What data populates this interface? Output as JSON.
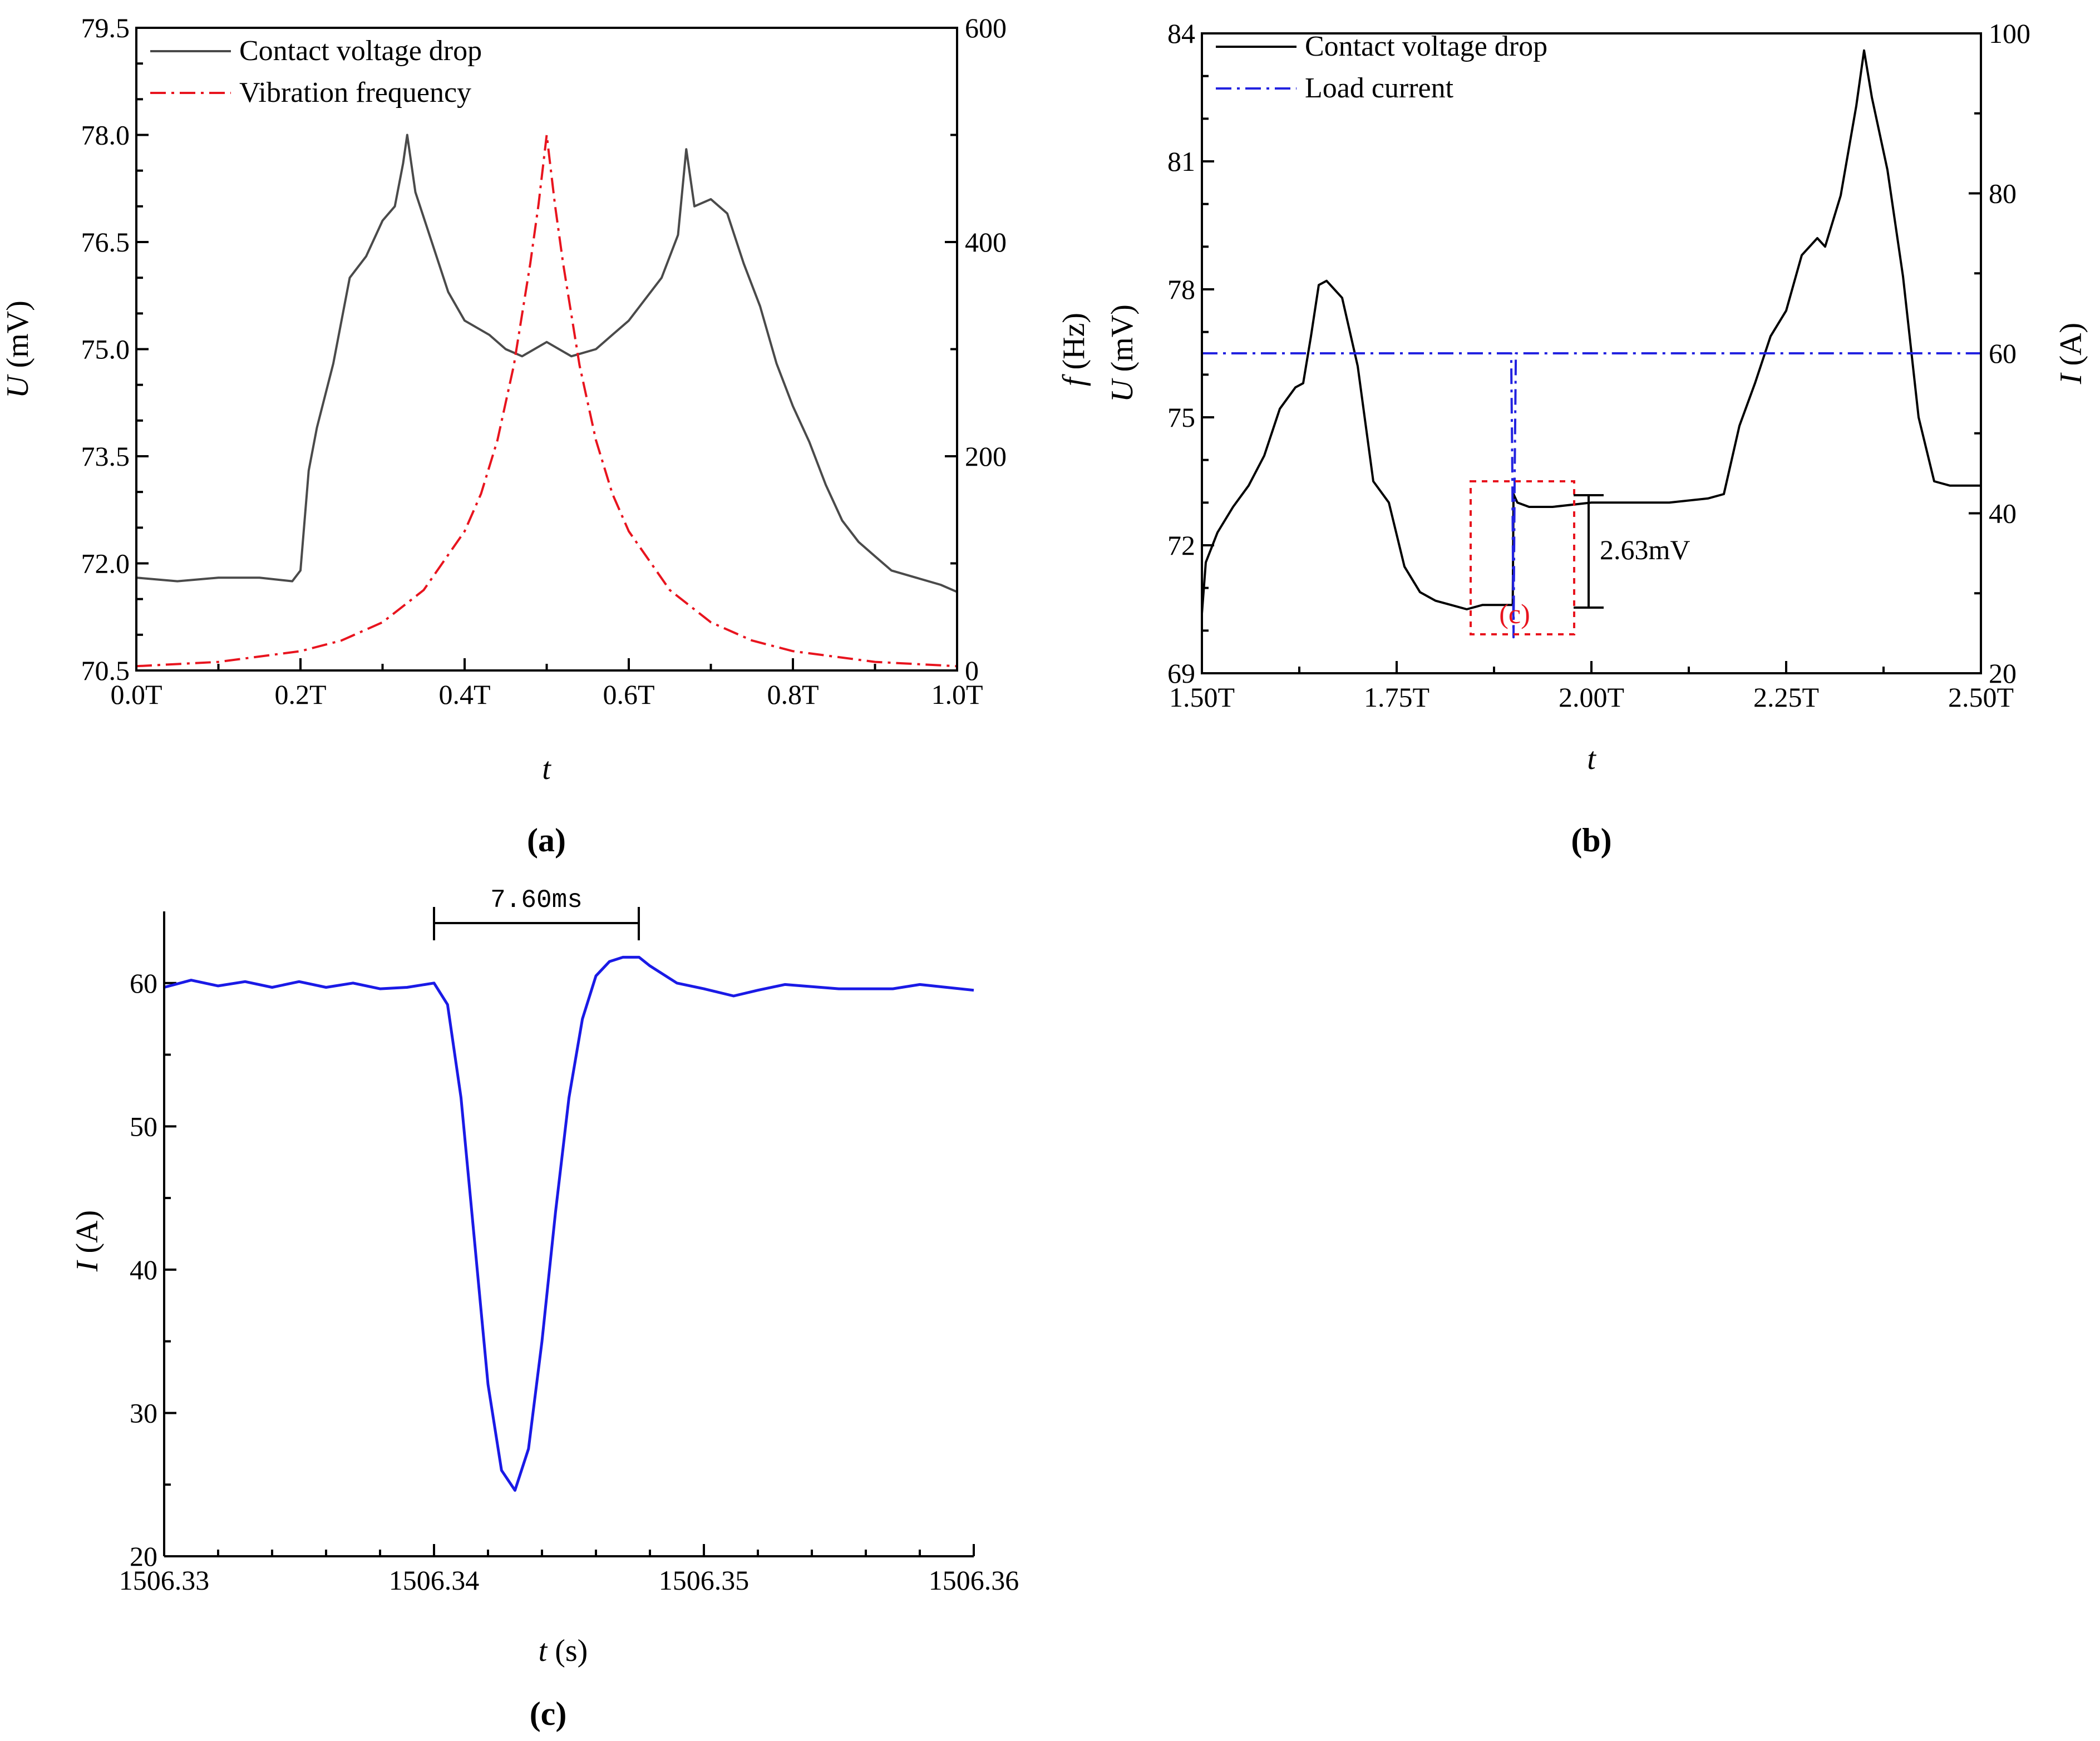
{
  "chart_data": [
    {
      "panel_label": "(a)",
      "type": "line",
      "x_axis": {
        "label": "t",
        "range": [
          0,
          1
        ],
        "ticks": [
          "0.0T",
          "0.2T",
          "0.4T",
          "0.6T",
          "0.8T",
          "1.0T"
        ]
      },
      "y_left": {
        "label_italic": "U",
        "label_rest": " (mV)",
        "range": [
          70.5,
          79.5
        ],
        "ticks": [
          "70.5",
          "72.0",
          "73.5",
          "75.0",
          "76.5",
          "78.0",
          "79.5"
        ]
      },
      "y_right": {
        "label_italic": "f",
        "label_rest": " (Hz)",
        "range": [
          0,
          600
        ],
        "ticks": [
          "0",
          "200",
          "400",
          "600"
        ]
      },
      "legend": [
        "Contact voltage drop",
        "Vibration frequency"
      ],
      "series": [
        {
          "name": "Contact voltage drop",
          "axis": "left",
          "color": "#4a4a4a",
          "style": "solid",
          "x": [
            0,
            0.05,
            0.1,
            0.15,
            0.19,
            0.2,
            0.21,
            0.22,
            0.24,
            0.26,
            0.28,
            0.3,
            0.315,
            0.325,
            0.33,
            0.34,
            0.36,
            0.38,
            0.4,
            0.43,
            0.45,
            0.47,
            0.5,
            0.53,
            0.56,
            0.58,
            0.6,
            0.62,
            0.64,
            0.66,
            0.665,
            0.67,
            0.68,
            0.7,
            0.72,
            0.74,
            0.76,
            0.78,
            0.8,
            0.82,
            0.84,
            0.86,
            0.88,
            0.9,
            0.92,
            0.95,
            0.98,
            1.0
          ],
          "y": [
            71.8,
            71.75,
            71.8,
            71.8,
            71.75,
            71.9,
            73.3,
            73.9,
            74.8,
            76.0,
            76.3,
            76.8,
            77.0,
            77.6,
            78.0,
            77.2,
            76.5,
            75.8,
            75.4,
            75.2,
            75.0,
            74.9,
            75.1,
            74.9,
            75.0,
            75.2,
            75.4,
            75.7,
            76.0,
            76.6,
            77.2,
            77.8,
            77.0,
            77.1,
            76.9,
            76.2,
            75.6,
            74.8,
            74.2,
            73.7,
            73.1,
            72.6,
            72.3,
            72.1,
            71.9,
            71.8,
            71.7,
            71.6
          ]
        },
        {
          "name": "Vibration frequency",
          "axis": "right",
          "color": "#e8141e",
          "style": "dashdot",
          "x": [
            0,
            0.1,
            0.2,
            0.25,
            0.3,
            0.35,
            0.4,
            0.42,
            0.44,
            0.46,
            0.48,
            0.49,
            0.5,
            0.51,
            0.52,
            0.54,
            0.56,
            0.58,
            0.6,
            0.65,
            0.7,
            0.75,
            0.8,
            0.9,
            1.0
          ],
          "y": [
            4,
            8,
            18,
            28,
            45,
            75,
            130,
            165,
            215,
            285,
            380,
            435,
            500,
            435,
            380,
            285,
            215,
            165,
            130,
            75,
            45,
            28,
            18,
            8,
            4
          ]
        }
      ]
    },
    {
      "panel_label": "(b)",
      "type": "line",
      "x_axis": {
        "label": "t",
        "range": [
          1.5,
          2.5
        ],
        "ticks": [
          "1.50T",
          "1.75T",
          "2.00T",
          "2.25T",
          "2.50T"
        ]
      },
      "y_left": {
        "label_italic": "U",
        "label_rest": " (mV)",
        "range": [
          69,
          84
        ],
        "ticks": [
          "69",
          "72",
          "75",
          "78",
          "81",
          "84"
        ]
      },
      "y_right": {
        "label_italic": "I",
        "label_rest": " (A)",
        "range": [
          20,
          100
        ],
        "ticks": [
          "20",
          "40",
          "60",
          "80",
          "100"
        ]
      },
      "legend": [
        "Contact voltage drop",
        "Load current"
      ],
      "annotations": {
        "voltage_jump": "2.63mV",
        "zoom_box": "(c)"
      },
      "series": [
        {
          "name": "Contact voltage drop",
          "axis": "left",
          "color": "#000000",
          "style": "solid",
          "x": [
            1.5,
            1.505,
            1.52,
            1.54,
            1.56,
            1.58,
            1.6,
            1.62,
            1.63,
            1.64,
            1.65,
            1.66,
            1.67,
            1.68,
            1.7,
            1.72,
            1.74,
            1.76,
            1.78,
            1.8,
            1.82,
            1.84,
            1.86,
            1.88,
            1.899,
            1.9,
            1.905,
            1.92,
            1.95,
            2.0,
            2.05,
            2.1,
            2.15,
            2.17,
            2.19,
            2.21,
            2.23,
            2.25,
            2.27,
            2.29,
            2.3,
            2.32,
            2.34,
            2.35,
            2.36,
            2.38,
            2.4,
            2.42,
            2.44,
            2.46,
            2.48,
            2.5
          ],
          "y": [
            70.4,
            71.6,
            72.3,
            72.9,
            73.4,
            74.1,
            75.2,
            75.7,
            75.8,
            76.9,
            78.1,
            78.2,
            78.0,
            77.8,
            76.2,
            73.5,
            73.0,
            71.5,
            70.9,
            70.7,
            70.6,
            70.5,
            70.6,
            70.6,
            70.6,
            73.2,
            73.0,
            72.9,
            72.9,
            73.0,
            73.0,
            73.0,
            73.1,
            73.2,
            74.8,
            75.8,
            76.9,
            77.5,
            78.8,
            79.2,
            79.0,
            80.2,
            82.3,
            83.6,
            82.5,
            80.8,
            78.3,
            75.0,
            73.5,
            73.4,
            73.4,
            73.4
          ]
        },
        {
          "name": "Load current",
          "axis": "right",
          "color": "#2222e0",
          "style": "dashdot",
          "x": [
            1.5,
            1.897,
            1.8985,
            1.9,
            1.9015,
            1.903,
            2.5
          ],
          "y": [
            60,
            60,
            45,
            24.5,
            45,
            60,
            60
          ]
        }
      ]
    },
    {
      "panel_label": "(c)",
      "type": "line",
      "x_axis": {
        "label_italic": "t",
        "label_rest": " (s)",
        "range": [
          1506.33,
          1506.36
        ],
        "ticks": [
          "1506.33",
          "1506.34",
          "1506.35",
          "1506.36"
        ]
      },
      "y_left": {
        "label_italic": "I",
        "label_rest": " (A)",
        "range": [
          20,
          65
        ],
        "ticks": [
          "20",
          "30",
          "40",
          "50",
          "60"
        ]
      },
      "annotations": {
        "interval": "7.60ms"
      },
      "series": [
        {
          "name": "Load current",
          "axis": "left",
          "color": "#1a1ae6",
          "style": "solid",
          "x": [
            1506.33,
            1506.331,
            1506.332,
            1506.333,
            1506.334,
            1506.335,
            1506.336,
            1506.337,
            1506.338,
            1506.339,
            1506.34,
            1506.3405,
            1506.341,
            1506.3415,
            1506.342,
            1506.3425,
            1506.343,
            1506.3435,
            1506.344,
            1506.3445,
            1506.345,
            1506.3455,
            1506.346,
            1506.3465,
            1506.347,
            1506.3476,
            1506.348,
            1506.349,
            1506.35,
            1506.3511,
            1506.352,
            1506.353,
            1506.355,
            1506.357,
            1506.358,
            1506.36
          ],
          "y": [
            59.7,
            60.2,
            59.8,
            60.1,
            59.7,
            60.1,
            59.7,
            60.0,
            59.6,
            59.7,
            60.0,
            58.5,
            52.0,
            42.0,
            32.0,
            26.0,
            24.6,
            27.5,
            35.0,
            44.0,
            52.0,
            57.5,
            60.5,
            61.5,
            61.8,
            61.8,
            61.2,
            60.0,
            59.6,
            59.1,
            59.5,
            59.9,
            59.6,
            59.6,
            59.9,
            59.5
          ]
        }
      ]
    }
  ]
}
